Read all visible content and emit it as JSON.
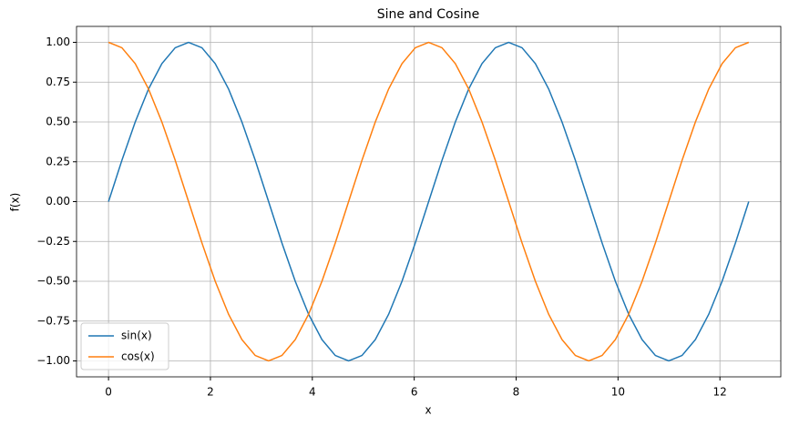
{
  "chart_data": {
    "type": "line",
    "title": "Sine and Cosine",
    "x_label": "x",
    "y_label": "f(x)",
    "x": [
      0,
      0.262,
      0.524,
      0.785,
      1.047,
      1.309,
      1.571,
      1.833,
      2.094,
      2.356,
      2.618,
      2.88,
      3.142,
      3.403,
      3.665,
      3.927,
      4.189,
      4.451,
      4.712,
      4.974,
      5.236,
      5.498,
      5.76,
      6.021,
      6.283,
      6.545,
      6.807,
      7.069,
      7.33,
      7.592,
      7.854,
      8.116,
      8.378,
      8.639,
      8.901,
      9.163,
      9.425,
      9.687,
      9.948,
      10.21,
      10.472,
      10.734,
      10.996,
      11.257,
      11.519,
      11.781,
      12.043,
      12.305,
      12.566
    ],
    "series": [
      {
        "name": "sin(x)",
        "color": "#1f77b4",
        "values": [
          0,
          0.259,
          0.5,
          0.707,
          0.866,
          0.966,
          1,
          0.966,
          0.866,
          0.707,
          0.5,
          0.259,
          0,
          -0.259,
          -0.5,
          -0.707,
          -0.866,
          -0.966,
          -1,
          -0.966,
          -0.866,
          -0.707,
          -0.5,
          -0.259,
          0,
          0.259,
          0.5,
          0.707,
          0.866,
          0.966,
          1,
          0.966,
          0.866,
          0.707,
          0.5,
          0.259,
          0,
          -0.259,
          -0.5,
          -0.707,
          -0.866,
          -0.966,
          -1,
          -0.966,
          -0.866,
          -0.707,
          -0.5,
          -0.259,
          0
        ]
      },
      {
        "name": "cos(x)",
        "color": "#ff7f0e",
        "values": [
          1,
          0.966,
          0.866,
          0.707,
          0.5,
          0.259,
          0,
          -0.259,
          -0.5,
          -0.707,
          -0.866,
          -0.966,
          -1,
          -0.966,
          -0.866,
          -0.707,
          -0.5,
          -0.259,
          0,
          0.259,
          0.5,
          0.707,
          0.866,
          0.966,
          1,
          0.966,
          0.866,
          0.707,
          0.5,
          0.259,
          0,
          -0.259,
          -0.5,
          -0.707,
          -0.866,
          -0.966,
          -1,
          -0.966,
          -0.866,
          -0.707,
          -0.5,
          -0.259,
          0,
          0.259,
          0.5,
          0.707,
          0.866,
          0.966,
          1
        ]
      }
    ],
    "xlim": [
      -0.628,
      13.195
    ],
    "xticks": [
      0,
      2,
      4,
      6,
      8,
      10,
      12
    ],
    "ylim": [
      -1.1,
      1.1
    ],
    "yticks": [
      {
        "value": -1,
        "label": "−1.00"
      },
      {
        "value": -0.75,
        "label": "−0.75"
      },
      {
        "value": -0.5,
        "label": "−0.50"
      },
      {
        "value": -0.25,
        "label": "−0.25"
      },
      {
        "value": 0,
        "label": "0.00"
      },
      {
        "value": 0.25,
        "label": "0.25"
      },
      {
        "value": 0.5,
        "label": "0.50"
      },
      {
        "value": 0.75,
        "label": "0.75"
      },
      {
        "value": 1,
        "label": "1.00"
      }
    ],
    "grid": true,
    "legend": "lower left"
  }
}
